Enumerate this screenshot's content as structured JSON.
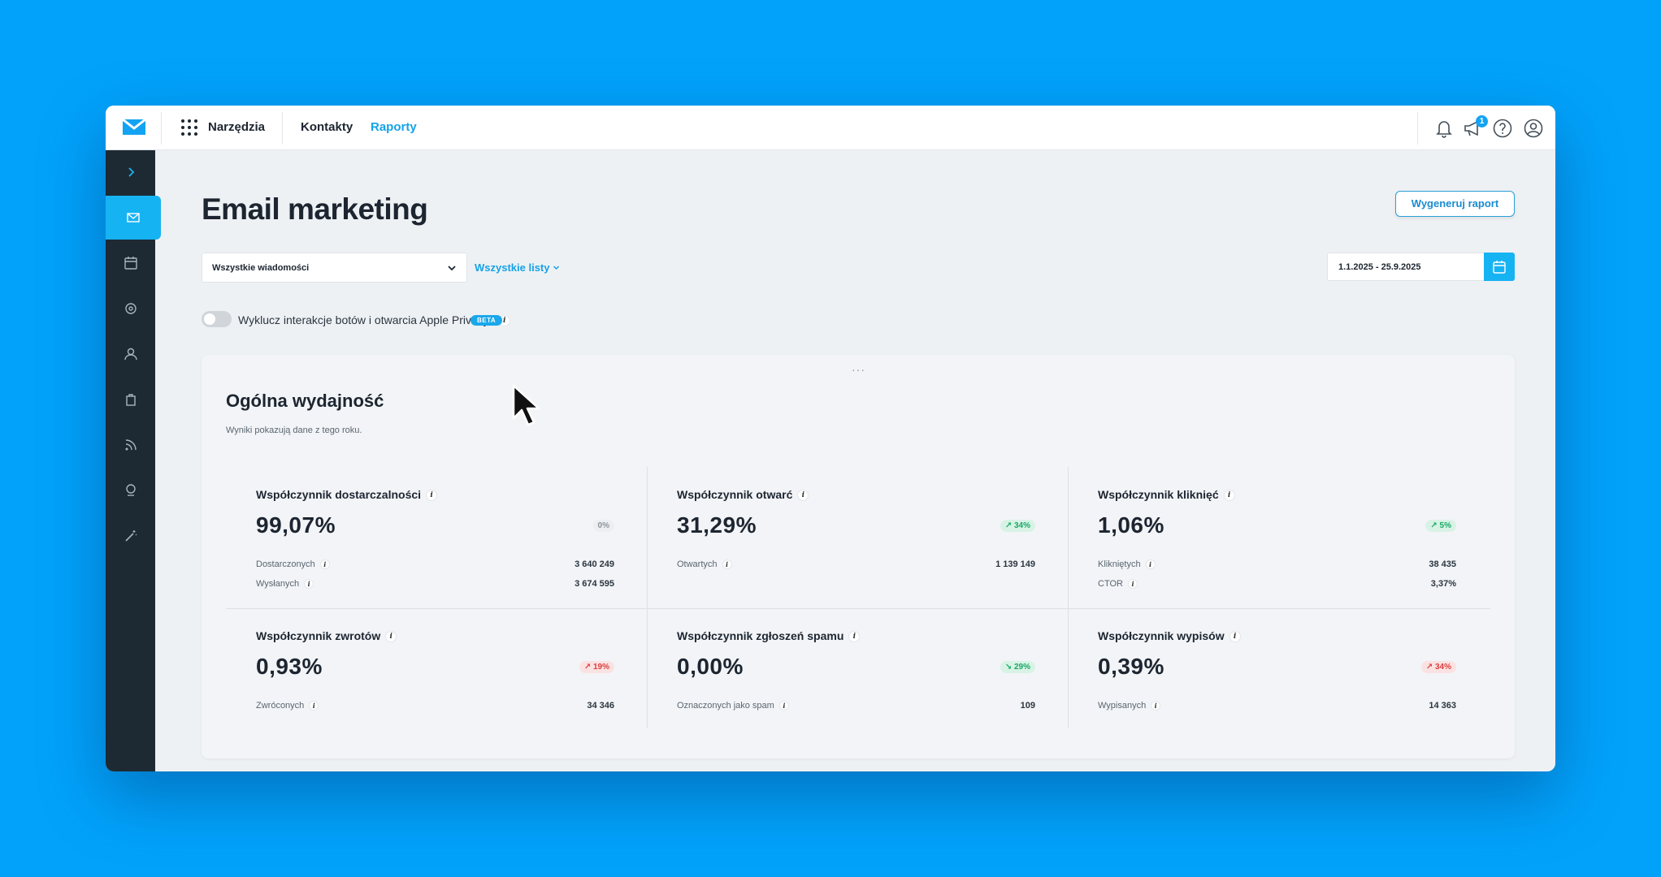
{
  "topbar": {
    "tools_label": "Narzędzia",
    "nav": [
      {
        "label": "Kontakty",
        "active": false
      },
      {
        "label": "Raporty",
        "active": true
      }
    ],
    "notification_badge": "1",
    "icons": [
      "bell-icon",
      "megaphone-icon",
      "help-icon",
      "user-icon"
    ]
  },
  "sidebar": {
    "items": [
      "expand-chevron-icon",
      "email-icon",
      "calendar-icon",
      "settings-icon",
      "user-icon",
      "shopping-bag-icon",
      "rss-icon",
      "location-pin-icon",
      "magic-wand-icon"
    ],
    "active": "email-icon"
  },
  "page": {
    "title": "Email marketing",
    "generate_report": "Wygeneruj raport",
    "message_select": "Wszystkie wiadomości",
    "lists_link": "Wszystkie listy",
    "date_range": "1.1.2025 - 25.9.2025",
    "toggle_label": "Wyklucz interakcje botów i otwarcia Apple Privacy",
    "beta": "BETA"
  },
  "card": {
    "title": "Ogólna wydajność",
    "subtitle": "Wyniki pokazują dane z tego roku.",
    "metrics": [
      {
        "title": "Współczynnik dostarczalności",
        "value": "99,07%",
        "badge": "0%",
        "trend": "neutral",
        "rows": [
          {
            "label": "Dostarczonych",
            "value": "3 640 249"
          },
          {
            "label": "Wysłanych",
            "value": "3 674 595"
          }
        ]
      },
      {
        "title": "Współczynnik otwarć",
        "value": "31,29%",
        "badge": "↗ 34%",
        "trend": "green",
        "rows": [
          {
            "label": "Otwartych",
            "value": "1 139 149"
          }
        ]
      },
      {
        "title": "Współczynnik kliknięć",
        "value": "1,06%",
        "badge": "↗ 5%",
        "trend": "green",
        "rows": [
          {
            "label": "Klikniętych",
            "value": "38 435"
          },
          {
            "label": "CTOR",
            "value": "3,37%"
          }
        ]
      },
      {
        "title": "Współczynnik zwrotów",
        "value": "0,93%",
        "badge": "↗ 19%",
        "trend": "red",
        "rows": [
          {
            "label": "Zwróconych",
            "value": "34 346"
          }
        ]
      },
      {
        "title": "Współczynnik zgłoszeń spamu",
        "value": "0,00%",
        "badge": "↘ 29%",
        "trend": "green",
        "rows": [
          {
            "label": "Oznaczonych jako spam",
            "value": "109"
          }
        ]
      },
      {
        "title": "Współczynnik wypisów",
        "value": "0,39%",
        "badge": "↗ 34%",
        "trend": "red",
        "rows": [
          {
            "label": "Wypisanych",
            "value": "14 363"
          }
        ]
      }
    ]
  },
  "colors": {
    "background": "#02a2fb",
    "accent": "#16b3f3",
    "sidebar": "#1e2a33",
    "positive": "#1aa866",
    "negative": "#dc3e3e"
  }
}
